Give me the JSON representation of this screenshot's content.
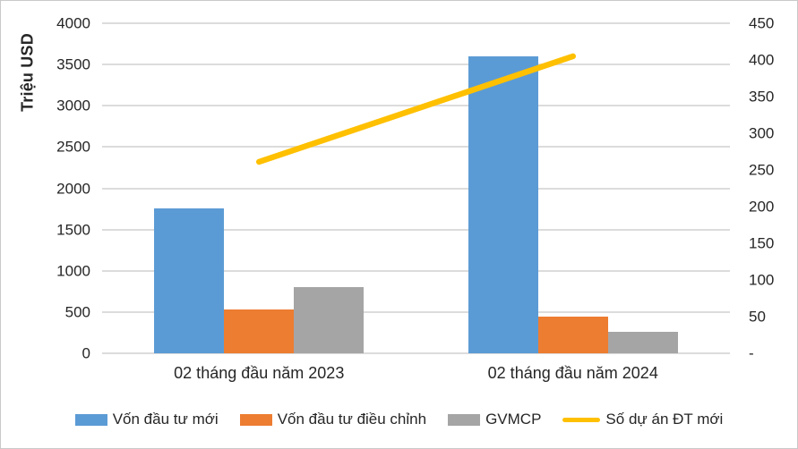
{
  "chart_data": {
    "type": "bar",
    "subtype": "combo-clustered-bar-with-line-dual-axis",
    "categories": [
      "02 tháng đầu năm 2023",
      "02 tháng đầu năm 2024"
    ],
    "series": [
      {
        "name": "Vốn đầu tư mới",
        "kind": "bar",
        "axis": "left",
        "color": "#5B9BD5",
        "values": [
          1760,
          3600
        ]
      },
      {
        "name": "Vốn đầu tư điều chỉnh",
        "kind": "bar",
        "axis": "left",
        "color": "#ED7D31",
        "values": [
          535,
          442
        ]
      },
      {
        "name": "GVMCP",
        "kind": "bar",
        "axis": "left",
        "color": "#A5A5A5",
        "values": [
          797,
          255
        ]
      },
      {
        "name": "Số dự án ĐT mới",
        "kind": "line",
        "axis": "right",
        "color": "#FFC000",
        "values": [
          261,
          405
        ]
      }
    ],
    "left_axis": {
      "label": "Triệu USD",
      "min": 0,
      "max": 4000,
      "tick_step": 500,
      "tick_labels": [
        "4000",
        "3500",
        "3000",
        "2500",
        "2000",
        "1500",
        "1000",
        "500",
        "0"
      ]
    },
    "right_axis": {
      "label": "",
      "min": 0,
      "max": 450,
      "tick_step": 50,
      "tick_labels": [
        "450",
        "400",
        "350",
        "300",
        "250",
        "200",
        "150",
        "100",
        "50",
        "-"
      ]
    },
    "grid": true,
    "legend_position": "bottom",
    "colors": {
      "grid": "#dcdcdc",
      "text": "#262626",
      "background": "#ffffff",
      "border": "#c9c9c9"
    }
  }
}
